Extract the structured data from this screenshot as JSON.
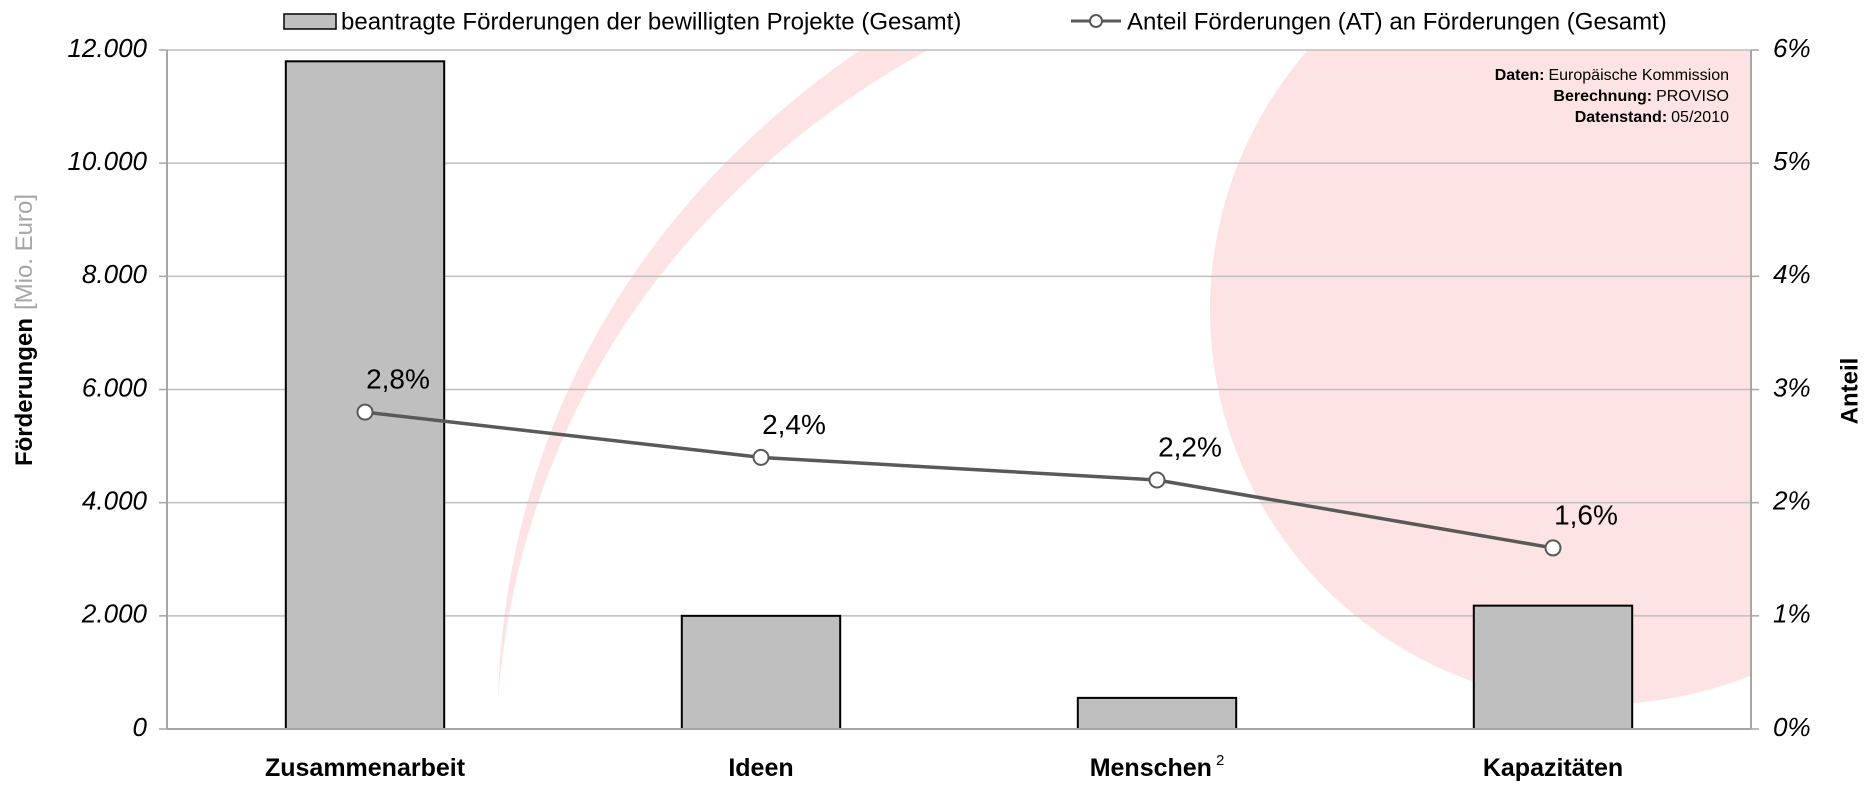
{
  "chart_data": {
    "type": "bar_line",
    "source": [
      {
        "label": "Daten:",
        "text": "Europäische Kommission"
      },
      {
        "label": "Berechnung:",
        "text": "PROVISO"
      },
      {
        "label": "Datenstand:",
        "text": "05/2010"
      }
    ],
    "ylabel": "Förderungen",
    "ylabel_unit": "[Mio. Euro]",
    "y2label": "Anteil",
    "categories": [
      "Zusammenarbeit",
      "Ideen",
      "Menschen",
      "Kapazitäten"
    ],
    "category_footnotes": [
      null,
      null,
      "2",
      null
    ],
    "series": [
      {
        "name": "beantragte Förderungen der bewilligten Projekte (Gesamt)",
        "color": "#bfbfbf",
        "type": "bar",
        "values": [
          11800,
          2000,
          550,
          2180
        ]
      },
      {
        "name": "Anteil Förderungen (AT) an Förderungen (Gesamt)",
        "color": "#595959",
        "type": "line",
        "axis": "y2",
        "values": [
          2.8,
          2.4,
          2.2,
          1.6
        ],
        "value_labels": [
          "2,8%",
          "2,4%",
          "2,2%",
          "1,6%"
        ]
      }
    ],
    "ylim": [
      0,
      12000
    ],
    "yticks": [
      0,
      {
        "value": 2000,
        "label": "2.000"
      },
      {
        "value": 4000,
        "label": "4.000"
      },
      {
        "value": 6000,
        "label": "6.000"
      },
      {
        "value": 8000,
        "label": "8.000"
      },
      {
        "value": 10000,
        "label": "10.000"
      },
      {
        "value": 12000,
        "label": "12.000"
      }
    ],
    "y2lim": [
      0,
      6
    ],
    "y2ticks": [
      {
        "value": 0,
        "label": "0%"
      },
      {
        "value": 1,
        "label": "1%"
      },
      {
        "value": 2,
        "label": "2%"
      },
      {
        "value": 3,
        "label": "3%"
      },
      {
        "value": 4,
        "label": "4%"
      },
      {
        "value": 5,
        "label": "5%"
      },
      {
        "value": 6,
        "label": "6%"
      }
    ],
    "grid": true
  }
}
